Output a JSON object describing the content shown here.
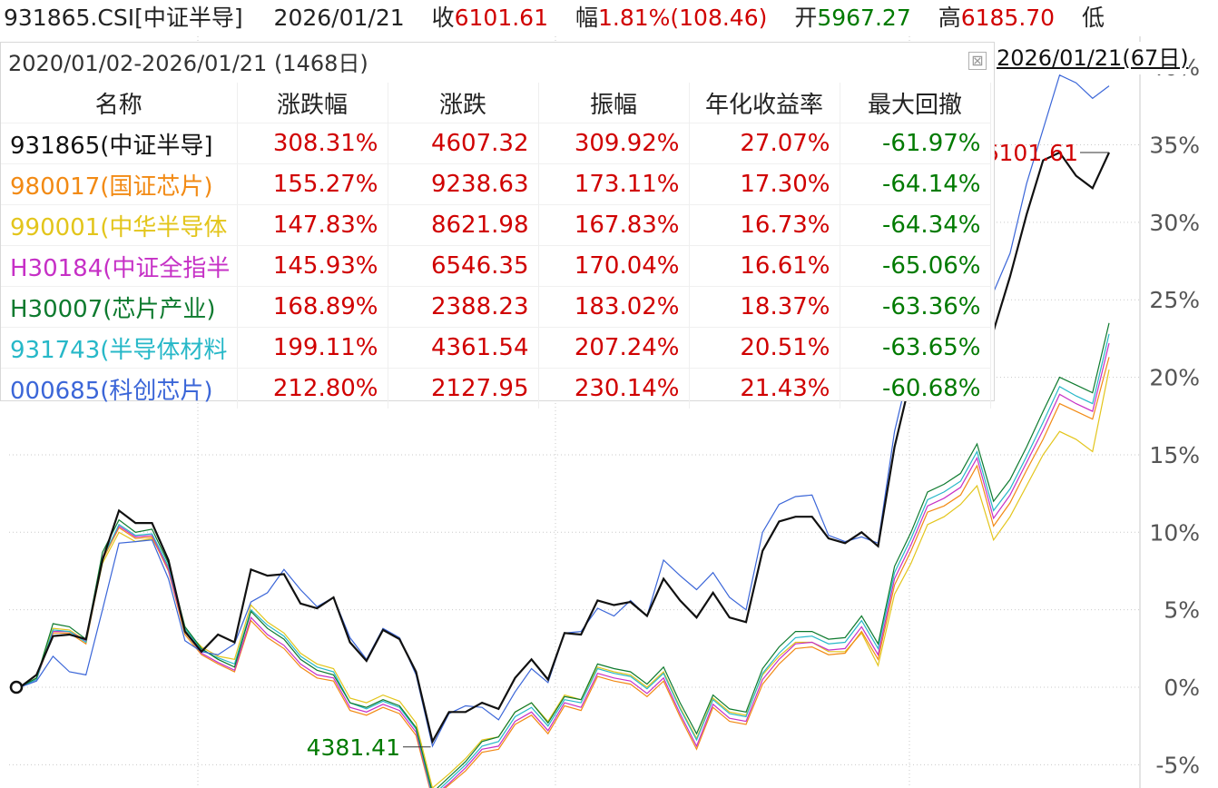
{
  "header": {
    "code": "931865.CSI[中证半导]",
    "date": "2026/01/21",
    "close_label": "收",
    "close_value": "6101.61",
    "change_label": "幅",
    "change_value": "1.81%(108.46)",
    "open_label": "开",
    "open_value": "5967.27",
    "high_label": "高",
    "high_value": "6185.70",
    "low_label": "低"
  },
  "right_date_label": "2026/01/21(67日)",
  "price_labels": {
    "current": "6101.61",
    "low": "4381.41"
  },
  "panel": {
    "title": "2020/01/02-2026/01/21 (1468日)",
    "close_symbol": "⊠",
    "columns": [
      "名称",
      "涨跌幅",
      "涨跌",
      "振幅",
      "年化收益率",
      "最大回撤"
    ],
    "rows": [
      {
        "name": "931865(中证半导]",
        "change_pct": "308.31%",
        "change": "4607.32",
        "amplitude": "309.92%",
        "annualized": "27.07%",
        "max_drawdown": "-61.97%",
        "color": "#111111"
      },
      {
        "name": "980017(国证芯片)",
        "change_pct": "155.27%",
        "change": "9238.63",
        "amplitude": "173.11%",
        "annualized": "17.30%",
        "max_drawdown": "-64.14%",
        "color": "#f28a14"
      },
      {
        "name": "990001(中华半导体",
        "change_pct": "147.83%",
        "change": "8621.98",
        "amplitude": "167.83%",
        "annualized": "16.73%",
        "max_drawdown": "-64.34%",
        "color": "#e3c51b"
      },
      {
        "name": "H30184(中证全指半",
        "change_pct": "145.93%",
        "change": "6546.35",
        "amplitude": "170.04%",
        "annualized": "16.61%",
        "max_drawdown": "-65.06%",
        "color": "#c630c6"
      },
      {
        "name": "H30007(芯片产业)",
        "change_pct": "168.89%",
        "change": "2388.23",
        "amplitude": "183.02%",
        "annualized": "18.37%",
        "max_drawdown": "-63.36%",
        "color": "#0d7a2e"
      },
      {
        "name": "931743(半导体材料",
        "change_pct": "199.11%",
        "change": "4361.54",
        "amplitude": "207.24%",
        "annualized": "20.51%",
        "max_drawdown": "-63.65%",
        "color": "#27b8c8"
      },
      {
        "name": "000685(科创芯片)",
        "change_pct": "212.80%",
        "change": "2127.95",
        "amplitude": "230.14%",
        "annualized": "21.43%",
        "max_drawdown": "-60.68%",
        "color": "#3b66d8"
      }
    ],
    "colors": {
      "up": "#d00000",
      "down": "#007a00"
    }
  },
  "chart_data": {
    "type": "line",
    "y_unit": "%",
    "ylim": [
      -6.5,
      42
    ],
    "y_ticks": [
      "-5%",
      "0%",
      "5%",
      "10%",
      "15%",
      "20%",
      "25%",
      "30%",
      "35%",
      "40%"
    ],
    "y_tick_values": [
      -5,
      0,
      5,
      10,
      15,
      20,
      25,
      30,
      35,
      40
    ],
    "x_count": 67,
    "grid": true,
    "series": [
      {
        "key": "931865",
        "color": "#111111",
        "values": [
          0,
          0.8,
          3.3,
          3.4,
          3.1,
          8.2,
          11.4,
          10.6,
          10.6,
          8.2,
          3.6,
          2.3,
          3.4,
          2.9,
          7.6,
          7.2,
          7.3,
          5.4,
          5.1,
          5.8,
          2.9,
          1.7,
          3.7,
          3.1,
          1.0,
          -3.5,
          -1.6,
          -1.6,
          -1.0,
          -1.4,
          0.6,
          1.8,
          0.5,
          3.5,
          3.4,
          5.6,
          5.3,
          5.5,
          4.6,
          7.0,
          5.6,
          4.5,
          6.1,
          4.5,
          4.2,
          8.8,
          10.7,
          11.0,
          11.0,
          9.6,
          9.3,
          10.0,
          9.1,
          15.5,
          20.0,
          27.0,
          29.5,
          31.5,
          29.0,
          23.0,
          26.5,
          30.5,
          34.0,
          34.5,
          33.0,
          32.2,
          34.5
        ]
      },
      {
        "key": "000685",
        "color": "#3b66d8",
        "values": [
          0,
          0.4,
          2.0,
          1.0,
          0.8,
          5.0,
          9.3,
          9.4,
          9.5,
          7.0,
          3.0,
          2.3,
          2.1,
          2.8,
          5.5,
          6.1,
          7.6,
          6.3,
          5.2,
          5.8,
          3.2,
          1.8,
          3.8,
          3.2,
          0.8,
          -3.8,
          -1.7,
          -1.2,
          -1.3,
          -2.1,
          -0.3,
          1.2,
          0.3,
          3.5,
          3.6,
          5.1,
          4.6,
          5.6,
          4.6,
          8.2,
          7.2,
          6.3,
          7.4,
          5.8,
          5.0,
          10.0,
          11.8,
          12.3,
          12.4,
          9.8,
          9.4,
          9.7,
          9.3,
          16.5,
          21.0,
          27.5,
          30.0,
          32.0,
          29.0,
          25.5,
          28.0,
          32.5,
          36.0,
          39.5,
          39.0,
          38.0,
          38.8
        ]
      },
      {
        "key": "H30007",
        "color": "#0d7a2e",
        "values": [
          0,
          0.6,
          4.1,
          3.9,
          3.1,
          8.7,
          10.8,
          10.0,
          10.2,
          8.0,
          3.9,
          2.5,
          1.8,
          1.3,
          4.9,
          3.8,
          3.1,
          1.8,
          1.1,
          0.8,
          -1.0,
          -1.3,
          -0.8,
          -1.2,
          -2.6,
          -6.8,
          -5.8,
          -4.8,
          -3.5,
          -3.2,
          -1.6,
          -1.0,
          -2.3,
          -0.6,
          -0.8,
          1.5,
          1.2,
          1.0,
          0.2,
          1.3,
          -1.0,
          -3.0,
          -0.5,
          -1.4,
          -1.6,
          1.2,
          2.6,
          3.6,
          3.6,
          3.1,
          3.2,
          4.6,
          2.8,
          7.8,
          10.0,
          12.6,
          13.1,
          13.8,
          15.7,
          12.0,
          13.4,
          15.5,
          17.8,
          20.0,
          19.5,
          19.0,
          23.5
        ]
      },
      {
        "key": "931743",
        "color": "#27b8c8",
        "values": [
          0,
          0.5,
          3.7,
          3.6,
          2.9,
          8.3,
          10.5,
          9.8,
          9.9,
          7.8,
          3.8,
          2.4,
          1.9,
          1.5,
          5.0,
          4.0,
          3.3,
          2.0,
          1.3,
          1.0,
          -1.0,
          -1.4,
          -0.9,
          -1.3,
          -2.7,
          -7.0,
          -6.0,
          -5.0,
          -3.8,
          -3.5,
          -1.9,
          -1.3,
          -2.5,
          -0.8,
          -1.0,
          1.2,
          0.9,
          0.7,
          -0.1,
          0.9,
          -1.4,
          -3.4,
          -0.8,
          -1.7,
          -1.9,
          0.9,
          2.2,
          3.2,
          3.3,
          2.8,
          2.9,
          4.3,
          2.5,
          7.4,
          9.6,
          12.1,
          12.6,
          13.3,
          15.2,
          11.4,
          12.8,
          14.9,
          17.1,
          19.4,
          18.8,
          18.3,
          22.8
        ]
      },
      {
        "key": "H30184",
        "color": "#c630c6",
        "values": [
          0,
          0.5,
          3.6,
          3.6,
          3.0,
          8.4,
          10.4,
          9.7,
          9.8,
          7.6,
          3.6,
          2.2,
          1.6,
          1.1,
          4.5,
          3.4,
          2.7,
          1.5,
          0.8,
          0.6,
          -1.3,
          -1.6,
          -1.1,
          -1.5,
          -2.9,
          -7.1,
          -6.2,
          -5.2,
          -4.0,
          -3.8,
          -2.2,
          -1.6,
          -2.8,
          -1.0,
          -1.3,
          0.9,
          0.6,
          0.4,
          -0.4,
          0.6,
          -1.7,
          -3.8,
          -1.1,
          -2.0,
          -2.2,
          0.5,
          1.8,
          2.8,
          2.9,
          2.4,
          2.5,
          3.9,
          2.1,
          7.0,
          9.2,
          11.7,
          12.2,
          12.9,
          14.8,
          10.9,
          12.4,
          14.5,
          16.6,
          18.9,
          18.3,
          17.8,
          22.2
        ]
      },
      {
        "key": "980017",
        "color": "#f28a14",
        "values": [
          0,
          0.5,
          3.5,
          3.5,
          2.8,
          8.2,
          10.3,
          9.6,
          9.7,
          7.5,
          3.4,
          2.1,
          1.5,
          1.0,
          4.3,
          3.2,
          2.5,
          1.3,
          0.6,
          0.4,
          -1.5,
          -1.8,
          -1.3,
          -1.7,
          -3.1,
          -7.2,
          -6.3,
          -5.4,
          -4.2,
          -4.0,
          -2.4,
          -1.8,
          -3.0,
          -1.2,
          -1.5,
          0.7,
          0.4,
          0.2,
          -0.6,
          0.4,
          -1.9,
          -4.0,
          -1.3,
          -2.2,
          -2.4,
          0.2,
          1.5,
          2.5,
          2.6,
          2.1,
          2.2,
          3.6,
          1.8,
          6.6,
          8.8,
          11.3,
          11.7,
          12.4,
          14.3,
          10.4,
          11.9,
          14.0,
          16.0,
          18.3,
          17.8,
          17.3,
          21.3
        ]
      },
      {
        "key": "990001",
        "color": "#e3c51b",
        "values": [
          0,
          0.6,
          3.8,
          3.7,
          3.0,
          8.0,
          10.0,
          9.4,
          9.6,
          7.7,
          3.7,
          2.6,
          2.0,
          1.8,
          5.3,
          4.2,
          3.5,
          2.2,
          1.5,
          1.2,
          -0.7,
          -1.0,
          -0.5,
          -0.9,
          -2.3,
          -6.5,
          -5.6,
          -4.6,
          -3.4,
          -3.2,
          -1.6,
          -1.0,
          -2.2,
          -0.5,
          -0.8,
          1.3,
          1.0,
          0.8,
          0.0,
          1.0,
          -1.3,
          -3.3,
          -0.7,
          -1.6,
          -1.8,
          0.8,
          2.0,
          2.9,
          2.9,
          2.3,
          2.3,
          3.5,
          1.4,
          6.0,
          8.0,
          10.5,
          11.0,
          11.8,
          13.0,
          9.5,
          11.0,
          13.0,
          15.0,
          16.5,
          16.0,
          15.2,
          20.5
        ]
      }
    ]
  }
}
